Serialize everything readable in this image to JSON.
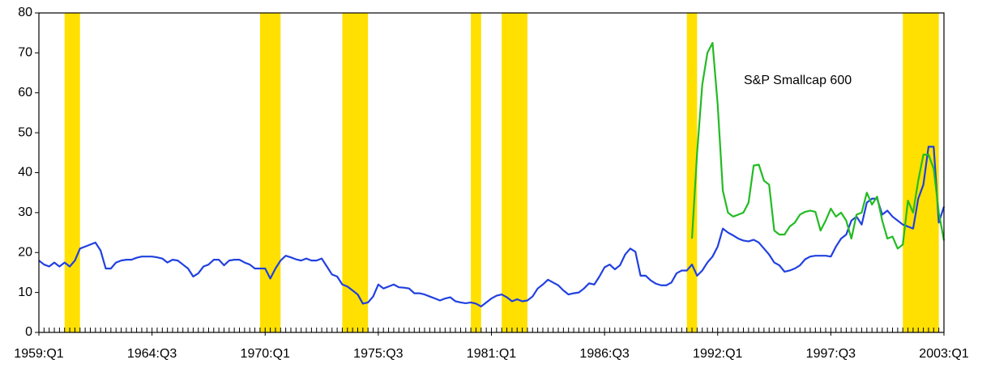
{
  "chart_data": {
    "type": "line",
    "x": [
      1959,
      1959.25,
      1959.5,
      1959.75,
      1960,
      1960.25,
      1960.5,
      1960.75,
      1961,
      1961.25,
      1961.5,
      1961.75,
      1962,
      1962.25,
      1962.5,
      1962.75,
      1963,
      1963.25,
      1963.5,
      1963.75,
      1964,
      1964.25,
      1964.5,
      1964.75,
      1965,
      1965.25,
      1965.5,
      1965.75,
      1966,
      1966.25,
      1966.5,
      1966.75,
      1967,
      1967.25,
      1967.5,
      1967.75,
      1968,
      1968.25,
      1968.5,
      1968.75,
      1969,
      1969.25,
      1969.5,
      1969.75,
      1970,
      1970.25,
      1970.5,
      1970.75,
      1971,
      1971.25,
      1971.5,
      1971.75,
      1972,
      1972.25,
      1972.5,
      1972.75,
      1973,
      1973.25,
      1973.5,
      1973.75,
      1974,
      1974.25,
      1974.5,
      1974.75,
      1975,
      1975.25,
      1975.5,
      1975.75,
      1976,
      1976.25,
      1976.5,
      1976.75,
      1977,
      1977.25,
      1977.5,
      1977.75,
      1978,
      1978.25,
      1978.5,
      1978.75,
      1979,
      1979.25,
      1979.5,
      1979.75,
      1980,
      1980.25,
      1980.5,
      1980.75,
      1981,
      1981.25,
      1981.5,
      1981.75,
      1982,
      1982.25,
      1982.5,
      1982.75,
      1983,
      1983.25,
      1983.5,
      1983.75,
      1984,
      1984.25,
      1984.5,
      1984.75,
      1985,
      1985.25,
      1985.5,
      1985.75,
      1986,
      1986.25,
      1986.5,
      1986.75,
      1987,
      1987.25,
      1987.5,
      1987.75,
      1988,
      1988.25,
      1988.5,
      1988.75,
      1989,
      1989.25,
      1989.5,
      1989.75,
      1990,
      1990.25,
      1990.5,
      1990.75,
      1991,
      1991.25,
      1991.5,
      1991.75,
      1992,
      1992.25,
      1992.5,
      1992.75,
      1993,
      1993.25,
      1993.5,
      1993.75,
      1994,
      1994.25,
      1994.5,
      1994.75,
      1995,
      1995.25,
      1995.5,
      1995.75,
      1996,
      1996.25,
      1996.5,
      1996.75,
      1997,
      1997.25,
      1997.5,
      1997.75,
      1998,
      1998.25,
      1998.5,
      1998.75,
      1999,
      1999.25,
      1999.5,
      1999.75,
      2000,
      2000.25,
      2000.5,
      2000.75,
      2001,
      2001.25,
      2001.5,
      2001.75,
      2002,
      2002.25,
      2002.5,
      2002.75,
      2003
    ],
    "series": [
      {
        "color": "#2040e0",
        "values": [
          18,
          17,
          16.5,
          17.5,
          16.5,
          17.5,
          16.5,
          18,
          21,
          21.5,
          22,
          22.5,
          20.5,
          16,
          16,
          17.5,
          18,
          18.2,
          18.2,
          18.7,
          19,
          19,
          19,
          18.8,
          18.5,
          17.5,
          18.2,
          18,
          17,
          16,
          14,
          14.8,
          16.5,
          17,
          18.2,
          18.2,
          16.8,
          18,
          18.2,
          18.2,
          17.5,
          17,
          16,
          16,
          16,
          13.5,
          16,
          18,
          19.2,
          18.8,
          18.3,
          18,
          18.5,
          18,
          18,
          18.5,
          16.5,
          14.5,
          14,
          12,
          11.5,
          10.5,
          9.5,
          7.2,
          7.5,
          9,
          12,
          11,
          11.5,
          12,
          11.3,
          11.2,
          11,
          9.8,
          9.8,
          9.5,
          9,
          8.5,
          8,
          8.5,
          8.8,
          7.8,
          7.5,
          7.3,
          7.5,
          7.2,
          6.5,
          7.5,
          8.5,
          9.2,
          9.5,
          8.8,
          7.8,
          8.3,
          7.8,
          8,
          9,
          11,
          12,
          13.2,
          12.5,
          11.8,
          10.5,
          9.5,
          9.8,
          10,
          11,
          12.3,
          12,
          14,
          16.3,
          17,
          15.8,
          16.8,
          19.5,
          21,
          20.2,
          14.2,
          14.2,
          13,
          12.2,
          11.8,
          11.8,
          12.5,
          14.8,
          15.5,
          15.5,
          17,
          14.2,
          15.5,
          17.5,
          19,
          21.5,
          26,
          25,
          24.3,
          23.5,
          23,
          22.8,
          23.2,
          22.5,
          21,
          19.5,
          17.5,
          16.8,
          15.2,
          15.5,
          16,
          16.8,
          18.3,
          19,
          19.2,
          19.2,
          19.2,
          19,
          21.5,
          23.5,
          24.5,
          28,
          29,
          27,
          32.5,
          33.5,
          33.5,
          29.5,
          30.5,
          29,
          28,
          27,
          26.5,
          26,
          33.5,
          37,
          46.5,
          46.5,
          27.5,
          31.5
        ]
      },
      {
        "name": "S&P Smallcap 600",
        "color": "#22bb22",
        "values": [
          null,
          null,
          null,
          null,
          null,
          null,
          null,
          null,
          null,
          null,
          null,
          null,
          null,
          null,
          null,
          null,
          null,
          null,
          null,
          null,
          null,
          null,
          null,
          null,
          null,
          null,
          null,
          null,
          null,
          null,
          null,
          null,
          null,
          null,
          null,
          null,
          null,
          null,
          null,
          null,
          null,
          null,
          null,
          null,
          null,
          null,
          null,
          null,
          null,
          null,
          null,
          null,
          null,
          null,
          null,
          null,
          null,
          null,
          null,
          null,
          null,
          null,
          null,
          null,
          null,
          null,
          null,
          null,
          null,
          null,
          null,
          null,
          null,
          null,
          null,
          null,
          null,
          null,
          null,
          null,
          null,
          null,
          null,
          null,
          null,
          null,
          null,
          null,
          null,
          null,
          null,
          null,
          null,
          null,
          null,
          null,
          null,
          null,
          null,
          null,
          null,
          null,
          null,
          null,
          null,
          null,
          null,
          null,
          null,
          null,
          null,
          null,
          null,
          null,
          null,
          null,
          null,
          null,
          null,
          null,
          null,
          null,
          null,
          null,
          null,
          null,
          null,
          23.5,
          45,
          62,
          70,
          72.5,
          57,
          35.5,
          30,
          29,
          29.5,
          30,
          32.5,
          41.8,
          42,
          38,
          37,
          25.5,
          24.5,
          24.5,
          26.5,
          27.5,
          29.5,
          30.2,
          30.5,
          30.2,
          25.5,
          28,
          31,
          29,
          30,
          28,
          23.5,
          29.5,
          30,
          35,
          32,
          34,
          28,
          23.5,
          24,
          21,
          22,
          33,
          30,
          38,
          44.5,
          44.5,
          41,
          30,
          23
        ]
      }
    ],
    "recessions": [
      [
        1960.25,
        1961
      ],
      [
        1969.75,
        1970.75
      ],
      [
        1973.75,
        1975
      ],
      [
        1980,
        1980.5
      ],
      [
        1981.5,
        1982.75
      ],
      [
        1990.5,
        1991
      ],
      [
        2001,
        2002.75
      ]
    ],
    "recession_color": "#ffe000",
    "xlim": [
      1959,
      2003
    ],
    "xticks": [
      {
        "value": 1959,
        "label": "1959:Q1"
      },
      {
        "value": 1964.5,
        "label": "1964:Q3"
      },
      {
        "value": 1970,
        "label": "1970:Q1"
      },
      {
        "value": 1975.5,
        "label": "1975:Q3"
      },
      {
        "value": 1981,
        "label": "1981:Q1"
      },
      {
        "value": 1986.5,
        "label": "1986:Q3"
      },
      {
        "value": 1992,
        "label": "1992:Q1"
      },
      {
        "value": 1997.5,
        "label": "1997:Q3"
      },
      {
        "value": 2003,
        "label": "2003:Q1"
      }
    ],
    "ylim": [
      0,
      80
    ],
    "yticks": [
      0,
      10,
      20,
      30,
      40,
      50,
      60,
      70,
      80
    ],
    "grid": false
  }
}
